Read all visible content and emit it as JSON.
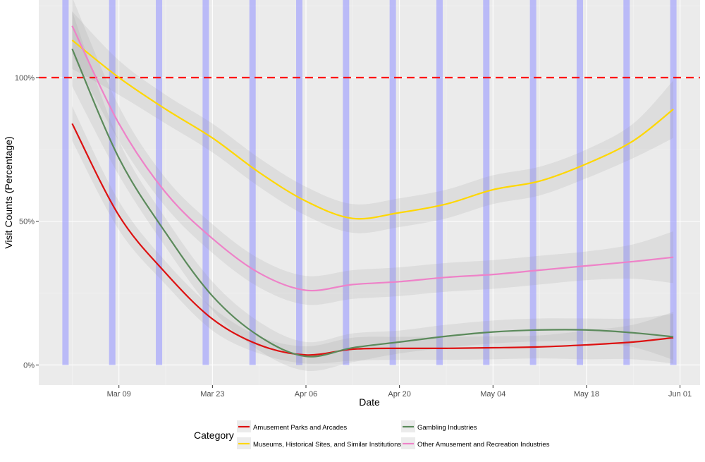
{
  "chart_data": {
    "type": "line",
    "title": "",
    "xlabel": "Date",
    "ylabel": "Visit Counts (Percentage)",
    "x_ticks": [
      "Mar 09",
      "Mar 23",
      "Apr 06",
      "Apr 20",
      "May 04",
      "May 18",
      "Jun 01"
    ],
    "y_ticks": [
      "0%",
      "50%",
      "100%"
    ],
    "x_range": [
      "2020-02-26",
      "2020-06-04"
    ],
    "ylim": [
      -0.07,
      1.27
    ],
    "grid": true,
    "reference_line": {
      "y": 1.0,
      "style": "dashed",
      "color": "#ff0000"
    },
    "weekend_bands": [
      "2020-03-01",
      "2020-03-08",
      "2020-03-15",
      "2020-03-22",
      "2020-03-29",
      "2020-04-05",
      "2020-04-12",
      "2020-04-19",
      "2020-04-26",
      "2020-05-03",
      "2020-05-10",
      "2020-05-17",
      "2020-05-24",
      "2020-05-31"
    ],
    "band_color": "#9999ff",
    "legend": {
      "title": "Category",
      "position": "bottom"
    },
    "series": [
      {
        "name": "Amusement Parks and Arcades",
        "color": "#dd1111",
        "x": [
          "2020-03-02",
          "2020-03-09",
          "2020-03-16",
          "2020-03-23",
          "2020-03-30",
          "2020-04-06",
          "2020-04-13",
          "2020-04-20",
          "2020-04-27",
          "2020-05-04",
          "2020-05-11",
          "2020-05-18",
          "2020-05-25",
          "2020-05-31"
        ],
        "values": [
          0.84,
          0.52,
          0.32,
          0.16,
          0.07,
          0.035,
          0.055,
          0.058,
          0.058,
          0.06,
          0.063,
          0.07,
          0.08,
          0.095
        ],
        "band": [
          0.06,
          0.05,
          0.04,
          0.04,
          0.03,
          0.03,
          0.04,
          0.04,
          0.04,
          0.04,
          0.04,
          0.05,
          0.06,
          0.09
        ]
      },
      {
        "name": "Museums, Historical Sites, and Similar Institutions",
        "color": "#ffd700",
        "x": [
          "2020-03-02",
          "2020-03-09",
          "2020-03-16",
          "2020-03-23",
          "2020-03-30",
          "2020-04-06",
          "2020-04-13",
          "2020-04-20",
          "2020-04-27",
          "2020-05-04",
          "2020-05-11",
          "2020-05-18",
          "2020-05-25",
          "2020-05-31"
        ],
        "values": [
          1.13,
          1.0,
          0.89,
          0.79,
          0.67,
          0.57,
          0.51,
          0.53,
          0.56,
          0.61,
          0.64,
          0.7,
          0.78,
          0.89
        ],
        "band": [
          0.1,
          0.06,
          0.05,
          0.05,
          0.05,
          0.05,
          0.05,
          0.05,
          0.05,
          0.05,
          0.05,
          0.05,
          0.06,
          0.1
        ]
      },
      {
        "name": "Gambling Industries",
        "color": "#5b8a5b",
        "x": [
          "2020-03-02",
          "2020-03-09",
          "2020-03-16",
          "2020-03-23",
          "2020-03-30",
          "2020-04-06",
          "2020-04-13",
          "2020-04-20",
          "2020-04-27",
          "2020-05-04",
          "2020-05-11",
          "2020-05-18",
          "2020-05-25",
          "2020-05-31"
        ],
        "values": [
          1.1,
          0.72,
          0.46,
          0.24,
          0.1,
          0.03,
          0.06,
          0.08,
          0.1,
          0.115,
          0.122,
          0.122,
          0.112,
          0.098
        ],
        "band": [
          0.13,
          0.06,
          0.05,
          0.05,
          0.05,
          0.05,
          0.05,
          0.04,
          0.04,
          0.04,
          0.04,
          0.04,
          0.05,
          0.08
        ]
      },
      {
        "name": "Other Amusement and Recreation Industries",
        "color": "#ee82c8",
        "x": [
          "2020-03-02",
          "2020-03-09",
          "2020-03-16",
          "2020-03-23",
          "2020-03-30",
          "2020-04-06",
          "2020-04-13",
          "2020-04-20",
          "2020-04-27",
          "2020-05-04",
          "2020-05-11",
          "2020-05-18",
          "2020-05-25",
          "2020-05-31"
        ],
        "values": [
          1.18,
          0.84,
          0.6,
          0.44,
          0.32,
          0.26,
          0.28,
          0.29,
          0.305,
          0.315,
          0.33,
          0.345,
          0.36,
          0.375
        ],
        "band": [
          0.1,
          0.06,
          0.05,
          0.05,
          0.05,
          0.05,
          0.05,
          0.05,
          0.05,
          0.05,
          0.05,
          0.05,
          0.06,
          0.09
        ]
      }
    ]
  }
}
